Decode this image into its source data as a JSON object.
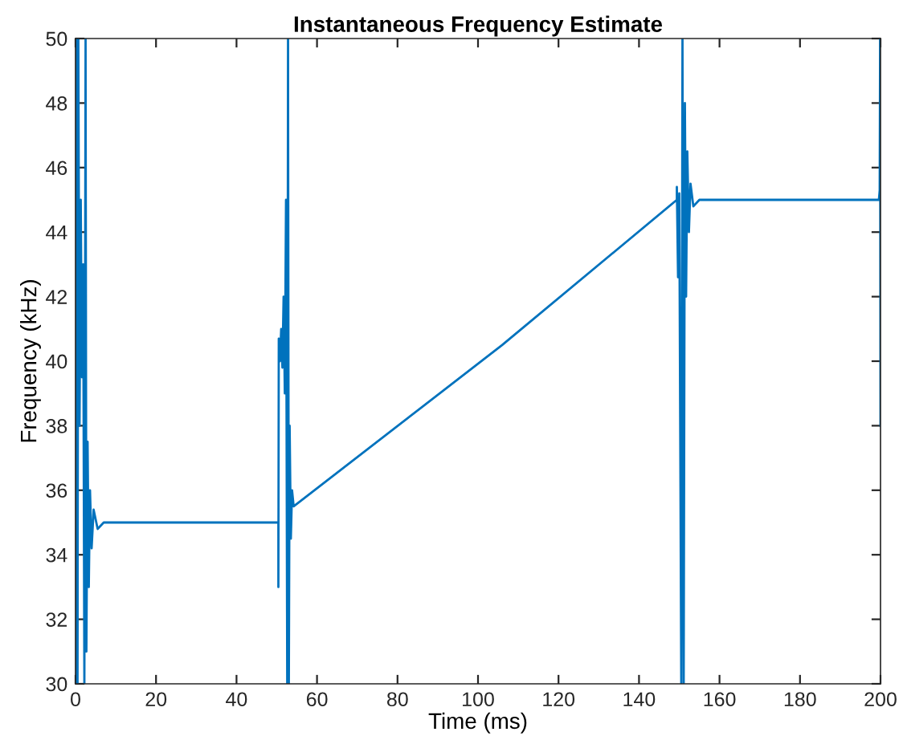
{
  "chart_data": {
    "type": "line",
    "title": "Instantaneous Frequency Estimate",
    "xlabel": "Time (ms)",
    "ylabel": "Frequency (kHz)",
    "xlim": [
      0,
      200
    ],
    "ylim": [
      30,
      50
    ],
    "xticks": [
      0,
      20,
      40,
      60,
      80,
      100,
      120,
      140,
      160,
      180,
      200
    ],
    "yticks": [
      30,
      32,
      34,
      36,
      38,
      40,
      42,
      44,
      46,
      48,
      50
    ],
    "grid": false,
    "legend": false,
    "series": [
      {
        "color": "#0072bd",
        "x": [
          0,
          0.2,
          0.5,
          0.7,
          1.0,
          1.3,
          1.6,
          1.9,
          2.2,
          2.5,
          2.7,
          3.0,
          3.3,
          3.6,
          4.0,
          4.5,
          5.5,
          7,
          50.4,
          50.4,
          50.5,
          50.8,
          51.1,
          51.4,
          51.7,
          52.0,
          52.3,
          52.6,
          52.8,
          53.0,
          53.2,
          53.5,
          53.8,
          54.2,
          106,
          149.4,
          149.4,
          149.7,
          150.0,
          150.5,
          150.8,
          151.1,
          151.4,
          151.7,
          152.0,
          152.4,
          152.8,
          153.5,
          155,
          199.6,
          199.8,
          199.9,
          200
        ],
        "values": [
          30,
          50,
          30,
          50,
          38,
          45,
          39.5,
          43,
          30,
          50,
          31,
          37.5,
          33,
          36,
          34.2,
          35.4,
          34.8,
          35,
          35,
          33,
          40.7,
          40,
          41,
          39.8,
          42,
          39,
          45,
          30,
          50,
          30,
          38,
          34.5,
          36,
          35.5,
          40.5,
          45.0,
          45.4,
          42.6,
          45.2,
          30,
          50,
          30,
          48,
          42,
          46.5,
          44,
          45.5,
          44.8,
          45,
          45,
          45.3,
          50,
          38
        ]
      }
    ]
  }
}
